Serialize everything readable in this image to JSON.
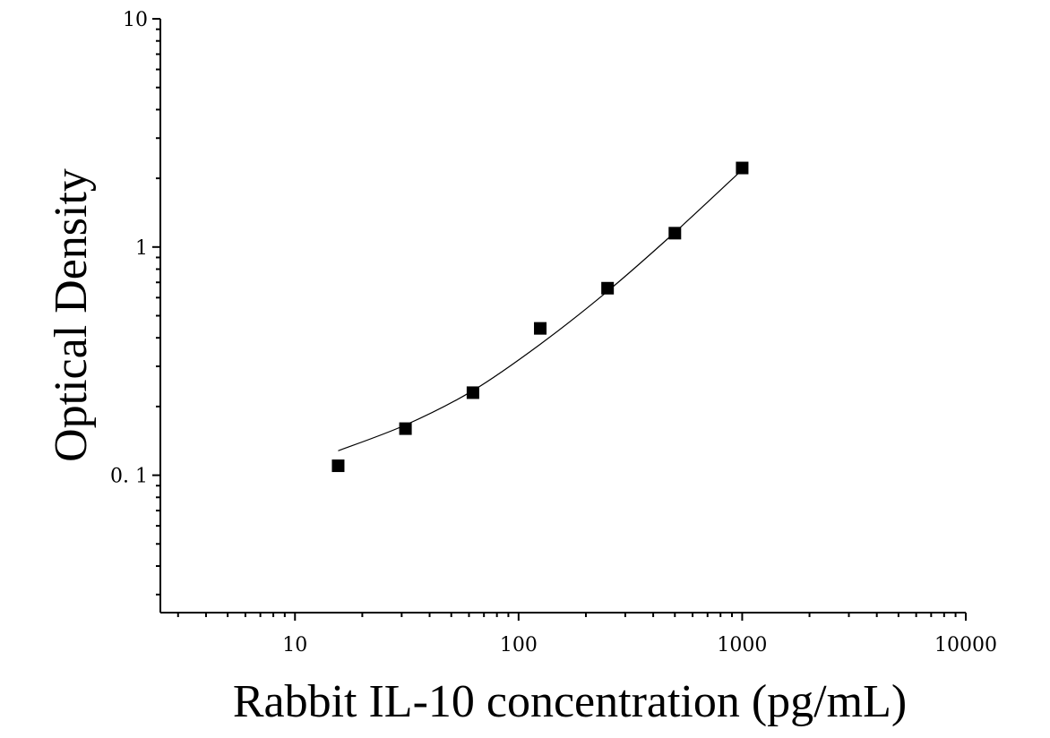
{
  "chart_data": {
    "type": "scatter",
    "title": "",
    "xlabel": "Rabbit IL-10 concentration (pg/mL)",
    "ylabel": "Optical Density",
    "x_scale": "log",
    "y_scale": "log",
    "xlim": [
      2.5,
      10000
    ],
    "ylim": [
      0.025,
      10
    ],
    "x_ticks": [
      {
        "value": 10,
        "label": "10"
      },
      {
        "value": 100,
        "label": "100"
      },
      {
        "value": 1000,
        "label": "1000"
      },
      {
        "value": 10000,
        "label": "10000"
      }
    ],
    "y_ticks": [
      {
        "value": 0.1,
        "label": "0. 1"
      },
      {
        "value": 1,
        "label": "1"
      },
      {
        "value": 10,
        "label": "10"
      }
    ],
    "grid": false,
    "series": [
      {
        "points": [
          {
            "x": 15.6,
            "y": 0.11
          },
          {
            "x": 31.2,
            "y": 0.16
          },
          {
            "x": 62.5,
            "y": 0.23
          },
          {
            "x": 125,
            "y": 0.44
          },
          {
            "x": 250,
            "y": 0.66
          },
          {
            "x": 500,
            "y": 1.15
          },
          {
            "x": 1000,
            "y": 2.22
          }
        ]
      }
    ],
    "fit_curve": {
      "points": [
        {
          "x": 15.6,
          "y": 0.128
        },
        {
          "x": 31.2,
          "y": 0.166
        },
        {
          "x": 62.5,
          "y": 0.235
        },
        {
          "x": 125,
          "y": 0.375
        },
        {
          "x": 250,
          "y": 0.64
        },
        {
          "x": 500,
          "y": 1.16
        },
        {
          "x": 1000,
          "y": 2.18
        }
      ]
    },
    "colors": {
      "marker": "#000000",
      "curve": "#000000",
      "axis": "#000000"
    }
  }
}
